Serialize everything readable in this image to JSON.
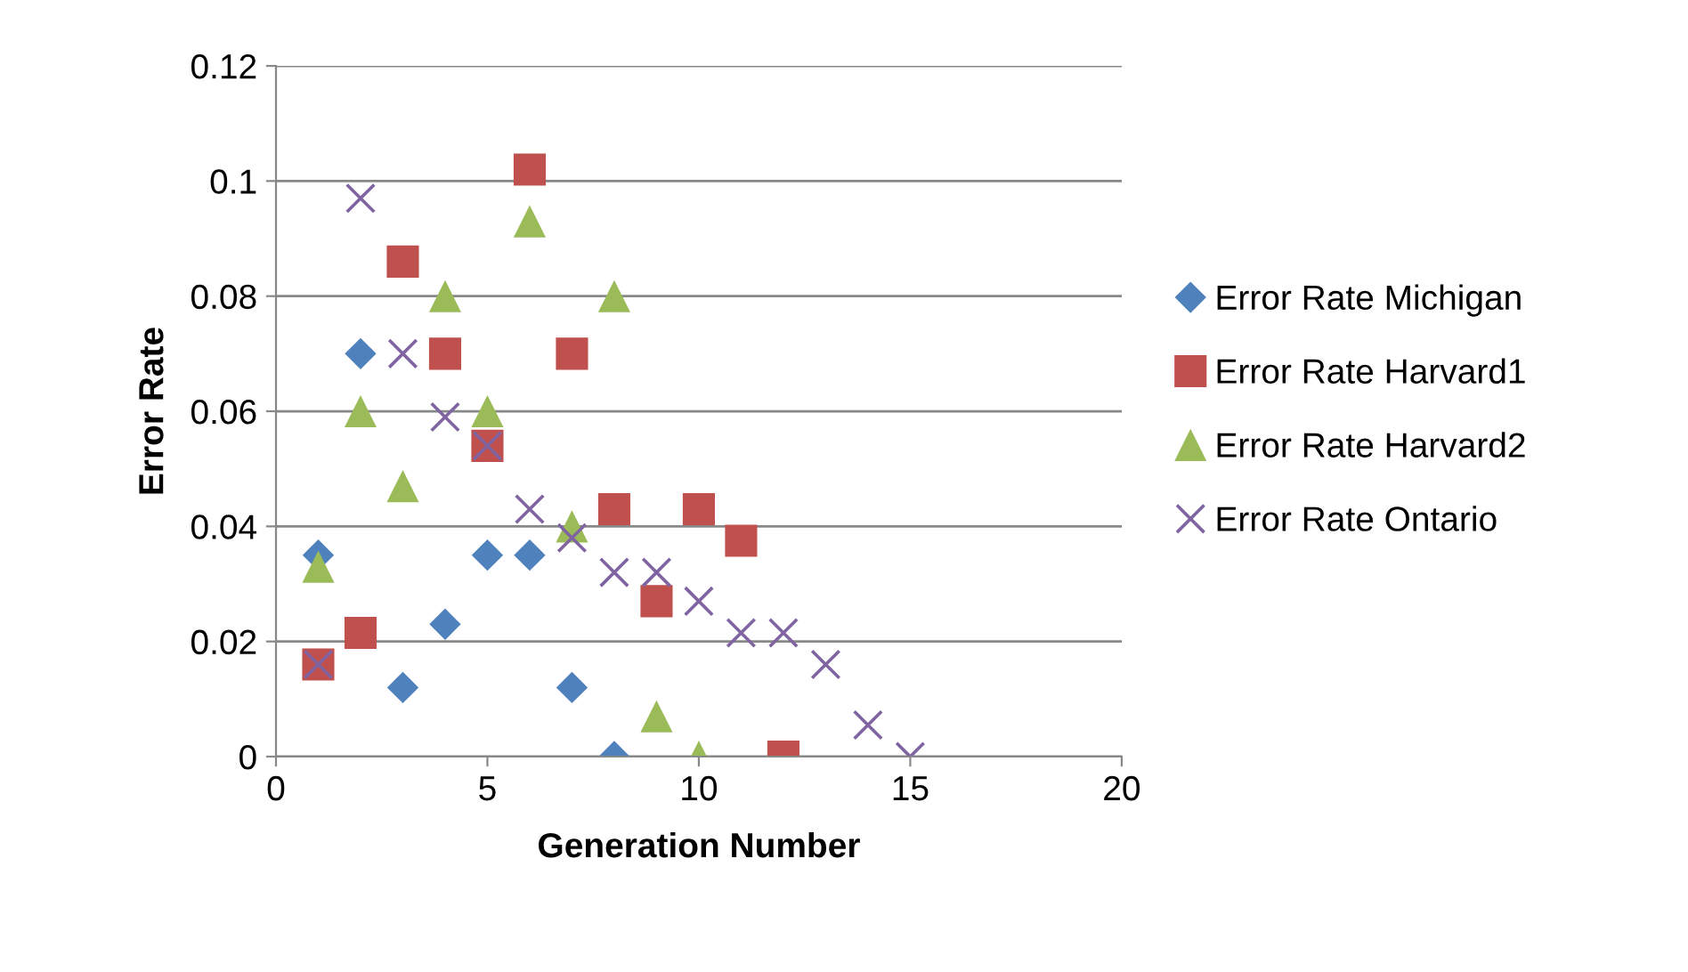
{
  "chart_data": {
    "type": "scatter",
    "xlabel": "Generation Number",
    "ylabel": "Error Rate",
    "xlim": [
      0,
      20
    ],
    "xticks": [
      0,
      5,
      10,
      15,
      20
    ],
    "ylim": [
      0,
      0.12
    ],
    "yticks": [
      {
        "value": 0,
        "label": "0"
      },
      0.02,
      0.04,
      0.06,
      0.08,
      0.1,
      0.12
    ],
    "grid": "y",
    "legend": "right",
    "series": [
      {
        "name": "Error Rate Michigan",
        "color": "#4f81bd",
        "marker": "diamond",
        "x": [
          1,
          2,
          3,
          4,
          5,
          6,
          7,
          8
        ],
        "values": [
          0.035,
          0.07,
          0.012,
          0.023,
          0.035,
          0.035,
          0.012,
          0
        ]
      },
      {
        "name": "Error Rate Harvard1",
        "color": "#c0504d",
        "marker": "square",
        "x": [
          1,
          2,
          3,
          4,
          5,
          6,
          7,
          8,
          9,
          10,
          11,
          12
        ],
        "values": [
          0.016,
          0.0215,
          0.086,
          0.07,
          0.054,
          0.102,
          0.07,
          0.043,
          0.027,
          0.043,
          0.0375,
          0
        ]
      },
      {
        "name": "Error Rate Harvard2",
        "color": "#9bbb59",
        "marker": "triangle",
        "x": [
          1,
          2,
          3,
          4,
          5,
          6,
          7,
          8,
          9,
          10
        ],
        "values": [
          0.033,
          0.06,
          0.047,
          0.08,
          0.06,
          0.093,
          0.04,
          0.08,
          0.007,
          0
        ]
      },
      {
        "name": "Error Rate Ontario",
        "color": "#8064a2",
        "marker": "cross",
        "x": [
          1,
          2,
          3,
          4,
          5,
          6,
          7,
          8,
          9,
          10,
          11,
          12,
          13,
          14,
          15
        ],
        "values": [
          0.016,
          0.097,
          0.07,
          0.059,
          0.054,
          0.043,
          0.038,
          0.032,
          0.032,
          0.027,
          0.0215,
          0.0215,
          0.016,
          0.0055,
          0
        ]
      }
    ]
  }
}
